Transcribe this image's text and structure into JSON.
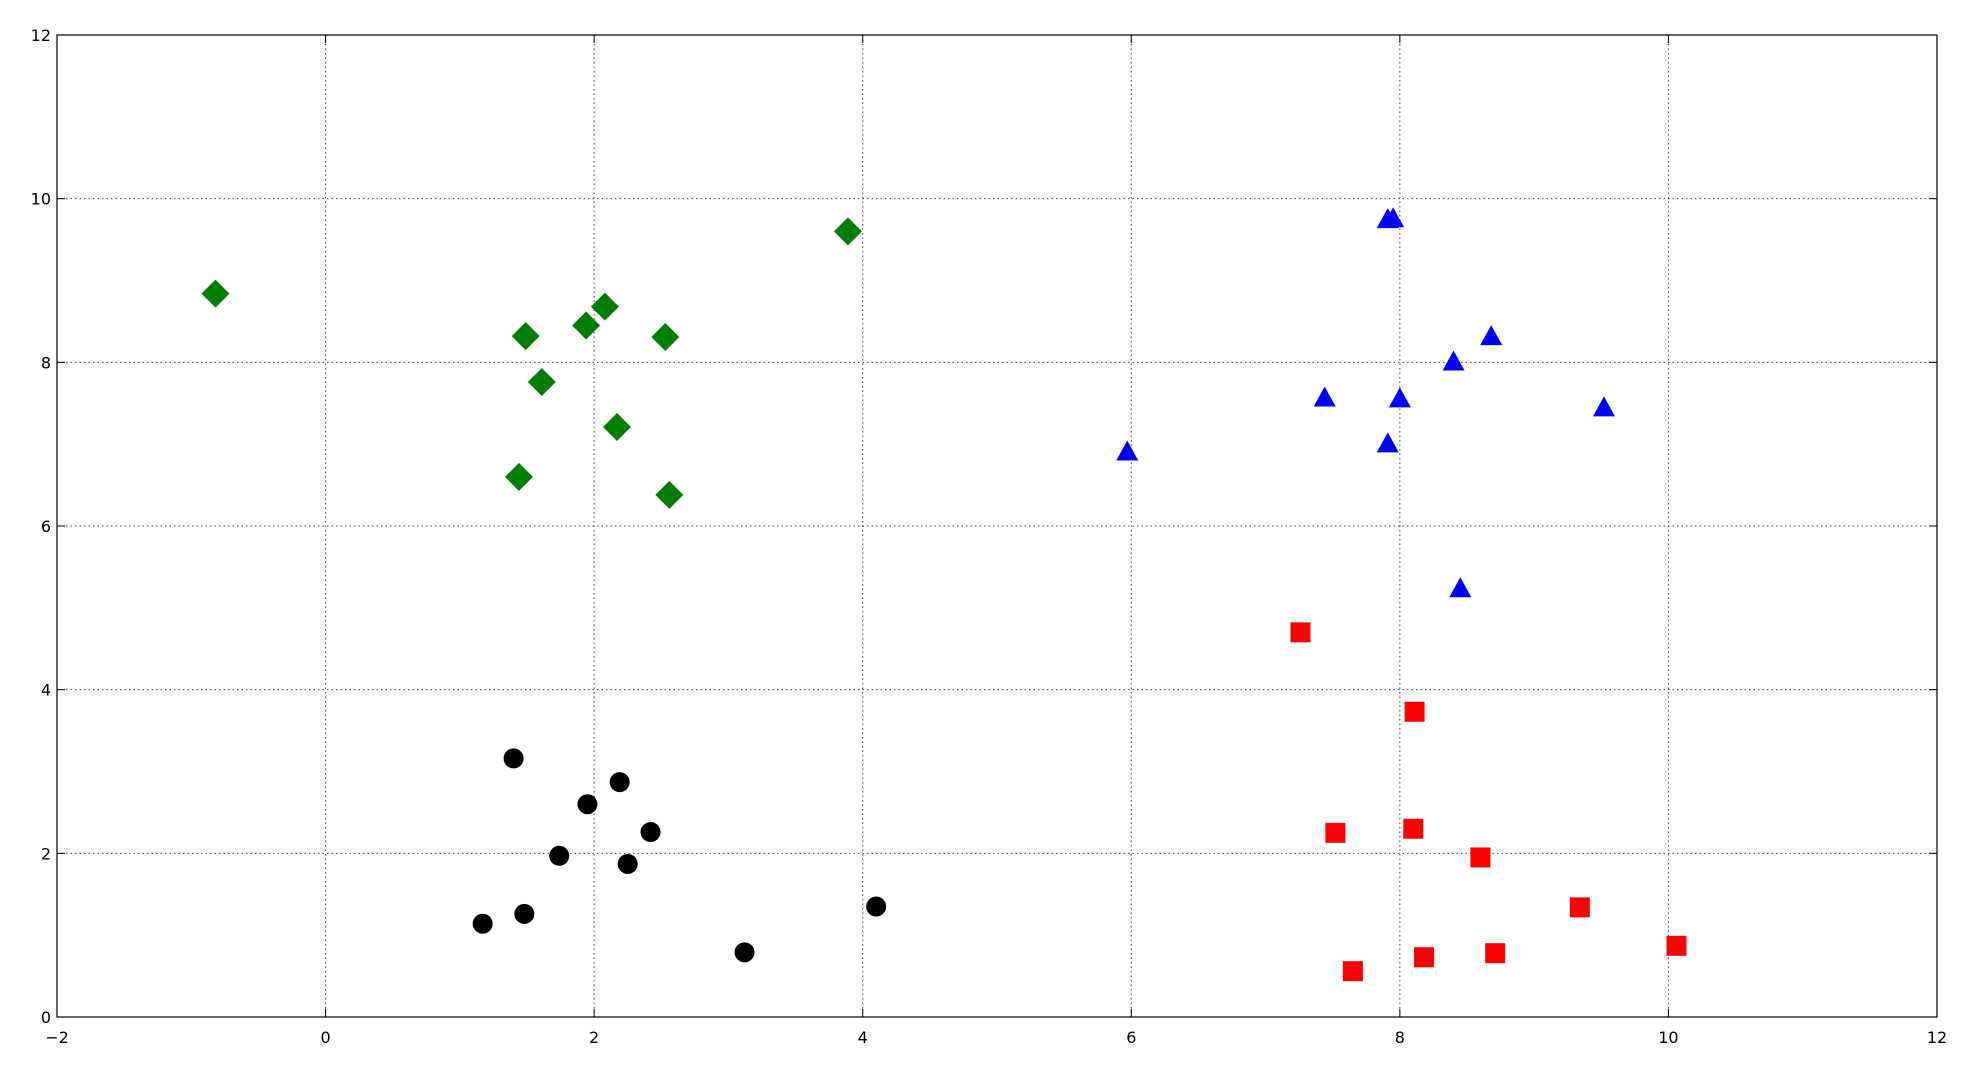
{
  "chart_data": {
    "type": "scatter",
    "title": "",
    "xlabel": "",
    "ylabel": "",
    "xlim": [
      -2,
      12
    ],
    "ylim": [
      0,
      12
    ],
    "x_ticks": [
      -2,
      0,
      2,
      4,
      6,
      8,
      10,
      12
    ],
    "y_ticks": [
      0,
      2,
      4,
      6,
      8,
      10,
      12
    ],
    "grid": true,
    "legend": "none",
    "series": [
      {
        "marker": "diamond",
        "color": "#008000",
        "points": [
          [
            -0.82,
            8.84
          ],
          [
            1.49,
            8.32
          ],
          [
            1.61,
            7.76
          ],
          [
            1.94,
            8.45
          ],
          [
            2.08,
            8.68
          ],
          [
            2.53,
            8.31
          ],
          [
            2.17,
            7.21
          ],
          [
            1.44,
            6.6
          ],
          [
            2.56,
            6.38
          ],
          [
            3.89,
            9.6
          ]
        ]
      },
      {
        "marker": "triangle",
        "color": "#0000ff",
        "points": [
          [
            5.97,
            6.91
          ],
          [
            7.44,
            7.57
          ],
          [
            7.91,
            7.01
          ],
          [
            7.91,
            9.75
          ],
          [
            7.95,
            9.76
          ],
          [
            8.0,
            7.56
          ],
          [
            8.4,
            8.01
          ],
          [
            8.68,
            8.32
          ],
          [
            8.45,
            5.24
          ],
          [
            9.52,
            7.45
          ]
        ]
      },
      {
        "marker": "square",
        "color": "#ff0000",
        "points": [
          [
            7.26,
            4.7
          ],
          [
            8.11,
            3.73
          ],
          [
            7.52,
            2.25
          ],
          [
            8.1,
            2.3
          ],
          [
            8.6,
            1.95
          ],
          [
            7.65,
            0.56
          ],
          [
            8.18,
            0.73
          ],
          [
            8.71,
            0.78
          ],
          [
            9.34,
            1.34
          ],
          [
            10.06,
            0.87
          ]
        ]
      },
      {
        "marker": "circle",
        "color": "#000000",
        "points": [
          [
            1.4,
            3.16
          ],
          [
            1.95,
            2.6
          ],
          [
            2.19,
            2.87
          ],
          [
            2.42,
            2.26
          ],
          [
            1.74,
            1.97
          ],
          [
            2.25,
            1.87
          ],
          [
            1.17,
            1.14
          ],
          [
            1.48,
            1.26
          ],
          [
            3.12,
            0.79
          ],
          [
            4.1,
            1.35
          ]
        ]
      }
    ]
  }
}
